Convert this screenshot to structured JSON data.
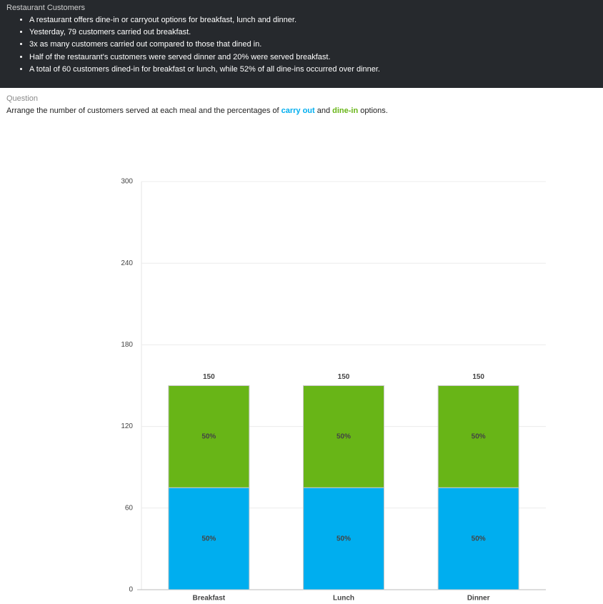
{
  "header": {
    "title": "Restaurant Customers",
    "bullets": [
      "A restaurant offers dine-in or carryout options for breakfast, lunch and dinner.",
      "Yesterday, 79 customers carried out breakfast.",
      "3x as many customers carried out compared to those that dined in.",
      "Half of the restaurant's customers were served dinner and 20% were served breakfast.",
      "A total of 60 customers dined-in for breakfast or lunch, while 52% of all dine-ins occurred over dinner."
    ]
  },
  "question": {
    "label": "Question",
    "text_before": "Arrange the number of customers served at each meal and the percentages of ",
    "text_middle": " and ",
    "text_after": " options."
  },
  "chart_data": {
    "type": "stacked_bar",
    "categories": [
      "Breakfast",
      "Lunch",
      "Dinner"
    ],
    "series": [
      {
        "name": "carry out",
        "color": "#00aeef",
        "values": [
          75,
          75,
          75
        ],
        "value_labels": [
          "50%",
          "50%",
          "50%"
        ]
      },
      {
        "name": "dine-in",
        "color": "#68b517",
        "values": [
          75,
          75,
          75
        ],
        "value_labels": [
          "50%",
          "50%",
          "50%"
        ]
      }
    ],
    "totals": [
      150,
      150,
      150
    ],
    "ylim": [
      0,
      300
    ],
    "yticks": [
      0,
      60,
      120,
      180,
      240,
      300
    ],
    "grid": true
  }
}
